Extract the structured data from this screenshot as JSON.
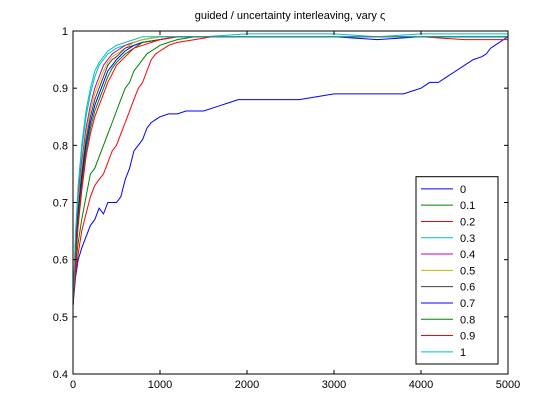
{
  "chart_data": {
    "type": "line",
    "title": "guided / uncertainty interleaving, vary ς",
    "xlabel": "",
    "ylabel": "",
    "xlim": [
      0,
      5000
    ],
    "ylim": [
      0.4,
      1.0
    ],
    "xticks": [
      0,
      1000,
      2000,
      3000,
      4000,
      5000
    ],
    "yticks": [
      0.4,
      0.5,
      0.6,
      0.7,
      0.8,
      0.9,
      1.0
    ],
    "xtick_labels": [
      "0",
      "1000",
      "2000",
      "3000",
      "4000",
      "5000"
    ],
    "ytick_labels": [
      "0.4",
      "0.5",
      "0.6",
      "0.7",
      "0.8",
      "0.9",
      "1"
    ],
    "grid": false,
    "legend_position": "lower-right",
    "series": [
      {
        "name": "0",
        "color": "#0000ff",
        "x": [
          0,
          30,
          60,
          100,
          150,
          200,
          250,
          300,
          350,
          400,
          450,
          500,
          550,
          600,
          650,
          700,
          750,
          800,
          850,
          900,
          950,
          1000,
          1100,
          1200,
          1300,
          1400,
          1500,
          1600,
          1700,
          1800,
          1900,
          2000,
          2200,
          2400,
          2600,
          2800,
          3000,
          3200,
          3400,
          3600,
          3800,
          3900,
          4000,
          4100,
          4200,
          4300,
          4400,
          4500,
          4600,
          4700,
          4750,
          4800,
          4850,
          4900,
          5000
        ],
        "y": [
          0.52,
          0.57,
          0.6,
          0.62,
          0.64,
          0.66,
          0.67,
          0.69,
          0.68,
          0.7,
          0.7,
          0.7,
          0.71,
          0.74,
          0.76,
          0.79,
          0.8,
          0.81,
          0.83,
          0.84,
          0.845,
          0.85,
          0.855,
          0.855,
          0.86,
          0.86,
          0.86,
          0.865,
          0.87,
          0.875,
          0.88,
          0.88,
          0.88,
          0.88,
          0.88,
          0.885,
          0.89,
          0.89,
          0.89,
          0.89,
          0.89,
          0.895,
          0.9,
          0.91,
          0.91,
          0.92,
          0.93,
          0.94,
          0.95,
          0.955,
          0.96,
          0.97,
          0.975,
          0.98,
          0.99
        ]
      },
      {
        "name": "0.1",
        "color": "#008000",
        "x": [
          0,
          30,
          60,
          100,
          150,
          200,
          250,
          300,
          350,
          400,
          450,
          500,
          550,
          600,
          650,
          700,
          750,
          800,
          850,
          900,
          950,
          1000,
          1100,
          1200,
          1400,
          1600,
          2000,
          2500,
          3000,
          3500,
          4000,
          4500,
          5000
        ],
        "y": [
          0.52,
          0.59,
          0.63,
          0.67,
          0.71,
          0.75,
          0.76,
          0.78,
          0.8,
          0.82,
          0.84,
          0.86,
          0.88,
          0.9,
          0.91,
          0.93,
          0.94,
          0.95,
          0.96,
          0.965,
          0.97,
          0.975,
          0.98,
          0.985,
          0.99,
          0.99,
          0.99,
          0.99,
          0.99,
          0.99,
          0.99,
          0.99,
          0.99
        ]
      },
      {
        "name": "0.2",
        "color": "#ff0000",
        "x": [
          0,
          30,
          60,
          100,
          150,
          200,
          250,
          300,
          350,
          400,
          450,
          500,
          550,
          600,
          650,
          700,
          750,
          800,
          850,
          900,
          950,
          1000,
          1050,
          1100,
          1200,
          1400,
          1600,
          2000,
          2500,
          3000,
          3500,
          4000,
          4500,
          5000
        ],
        "y": [
          0.52,
          0.58,
          0.61,
          0.65,
          0.68,
          0.71,
          0.73,
          0.74,
          0.75,
          0.77,
          0.79,
          0.8,
          0.82,
          0.84,
          0.86,
          0.88,
          0.9,
          0.91,
          0.93,
          0.95,
          0.96,
          0.965,
          0.97,
          0.975,
          0.98,
          0.985,
          0.99,
          0.99,
          0.99,
          0.99,
          0.99,
          0.99,
          0.99,
          0.99
        ]
      },
      {
        "name": "0.3",
        "color": "#00bfbf",
        "x": [
          0,
          30,
          60,
          100,
          150,
          200,
          250,
          300,
          350,
          400,
          450,
          500,
          600,
          700,
          800,
          1000,
          1200,
          1500,
          2000,
          2500,
          3000,
          3500,
          4000,
          4500,
          5000
        ],
        "y": [
          0.52,
          0.64,
          0.72,
          0.79,
          0.85,
          0.89,
          0.92,
          0.94,
          0.95,
          0.96,
          0.965,
          0.97,
          0.975,
          0.98,
          0.985,
          0.99,
          0.99,
          0.99,
          0.995,
          0.995,
          0.995,
          0.99,
          0.995,
          0.995,
          0.995
        ]
      },
      {
        "name": "0.4",
        "color": "#bf00bf",
        "x": [
          0,
          30,
          60,
          100,
          150,
          200,
          250,
          300,
          350,
          400,
          450,
          500,
          600,
          700,
          800,
          1000,
          1200,
          1500,
          2000,
          2500,
          3000,
          3500,
          4000,
          4500,
          5000
        ],
        "y": [
          0.52,
          0.63,
          0.71,
          0.77,
          0.83,
          0.87,
          0.9,
          0.92,
          0.94,
          0.95,
          0.96,
          0.965,
          0.975,
          0.98,
          0.985,
          0.99,
          0.99,
          0.99,
          0.99,
          0.99,
          0.99,
          0.99,
          0.99,
          0.99,
          0.99
        ]
      },
      {
        "name": "0.5",
        "color": "#bfbf00",
        "x": [
          0,
          30,
          60,
          100,
          150,
          200,
          250,
          300,
          350,
          400,
          450,
          500,
          600,
          700,
          800,
          1000,
          1200,
          1500,
          2000,
          2500,
          3000,
          3500,
          4000,
          4500,
          5000
        ],
        "y": [
          0.52,
          0.62,
          0.7,
          0.76,
          0.82,
          0.86,
          0.89,
          0.91,
          0.93,
          0.945,
          0.955,
          0.96,
          0.97,
          0.98,
          0.985,
          0.99,
          0.99,
          0.99,
          0.99,
          0.99,
          0.99,
          0.99,
          0.99,
          0.99,
          0.99
        ]
      },
      {
        "name": "0.6",
        "color": "#404040",
        "x": [
          0,
          30,
          60,
          100,
          150,
          200,
          250,
          300,
          350,
          400,
          450,
          500,
          600,
          700,
          800,
          1000,
          1200,
          1500,
          2000,
          2500,
          3000,
          3500,
          4000,
          4500,
          5000
        ],
        "y": [
          0.52,
          0.62,
          0.69,
          0.75,
          0.81,
          0.85,
          0.88,
          0.9,
          0.92,
          0.94,
          0.95,
          0.955,
          0.97,
          0.975,
          0.98,
          0.985,
          0.99,
          0.99,
          0.99,
          0.99,
          0.99,
          0.99,
          0.99,
          0.99,
          0.99
        ]
      },
      {
        "name": "0.7",
        "color": "#0000ff",
        "x": [
          0,
          30,
          60,
          100,
          150,
          200,
          250,
          300,
          350,
          400,
          450,
          500,
          600,
          700,
          800,
          1000,
          1200,
          1500,
          2000,
          2500,
          3000,
          3500,
          4000,
          4500,
          5000
        ],
        "y": [
          0.52,
          0.61,
          0.68,
          0.74,
          0.8,
          0.84,
          0.87,
          0.89,
          0.91,
          0.93,
          0.94,
          0.95,
          0.965,
          0.975,
          0.98,
          0.985,
          0.99,
          0.99,
          0.99,
          0.99,
          0.99,
          0.985,
          0.99,
          0.99,
          0.99
        ]
      },
      {
        "name": "0.8",
        "color": "#008000",
        "x": [
          0,
          30,
          60,
          100,
          150,
          200,
          250,
          300,
          350,
          400,
          450,
          500,
          600,
          700,
          800,
          1000,
          1200,
          1500,
          2000,
          2500,
          3000,
          3500,
          4000,
          4500,
          5000
        ],
        "y": [
          0.52,
          0.6,
          0.67,
          0.73,
          0.79,
          0.83,
          0.86,
          0.88,
          0.9,
          0.92,
          0.935,
          0.945,
          0.96,
          0.97,
          0.98,
          0.985,
          0.99,
          0.99,
          0.99,
          0.99,
          0.99,
          0.99,
          0.99,
          0.99,
          0.99
        ]
      },
      {
        "name": "0.9",
        "color": "#ff0000",
        "x": [
          0,
          30,
          60,
          100,
          150,
          200,
          250,
          300,
          350,
          400,
          450,
          500,
          600,
          700,
          800,
          1000,
          1200,
          1500,
          2000,
          2500,
          3000,
          3500,
          4000,
          4500,
          5000
        ],
        "y": [
          0.52,
          0.6,
          0.66,
          0.72,
          0.78,
          0.82,
          0.85,
          0.87,
          0.89,
          0.91,
          0.925,
          0.94,
          0.955,
          0.97,
          0.975,
          0.985,
          0.99,
          0.99,
          0.99,
          0.99,
          0.99,
          0.99,
          0.99,
          0.985,
          0.985
        ]
      },
      {
        "name": "1",
        "color": "#00bfbf",
        "x": [
          0,
          30,
          60,
          100,
          150,
          200,
          250,
          300,
          350,
          400,
          450,
          500,
          600,
          700,
          800,
          1000,
          1200,
          1500,
          2000,
          2500,
          3000,
          3500,
          4000,
          4500,
          5000
        ],
        "y": [
          0.52,
          0.65,
          0.73,
          0.8,
          0.86,
          0.9,
          0.93,
          0.945,
          0.955,
          0.965,
          0.97,
          0.975,
          0.98,
          0.985,
          0.99,
          0.99,
          0.99,
          0.99,
          0.99,
          0.99,
          0.99,
          0.99,
          0.99,
          0.99,
          0.99
        ]
      }
    ]
  }
}
